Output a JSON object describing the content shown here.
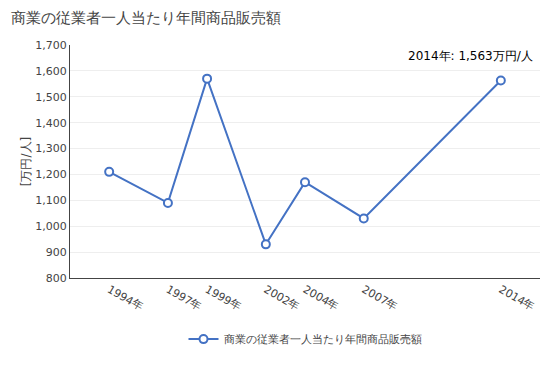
{
  "chart_data": {
    "type": "line",
    "title": "商業の従業者一人当たり年間商品販売額",
    "ylabel": "[万円/人]",
    "annotation": "2014年: 1,563万円/人",
    "x": [
      1994,
      1997,
      1999,
      2002,
      2004,
      2007,
      2014
    ],
    "xlim": [
      1992,
      2016
    ],
    "xticks": [
      {
        "value": 1994,
        "label": "1994年"
      },
      {
        "value": 1997,
        "label": "1997年"
      },
      {
        "value": 1999,
        "label": "1999年"
      },
      {
        "value": 2002,
        "label": "2002年"
      },
      {
        "value": 2004,
        "label": "2004年"
      },
      {
        "value": 2007,
        "label": "2007年"
      },
      {
        "value": 2014,
        "label": "2014年"
      }
    ],
    "series": [
      {
        "name": "商業の従業者一人当たり年間商品販売額",
        "color": "#4472C4",
        "values": [
          1210,
          1090,
          1570,
          930,
          1170,
          1030,
          1563
        ]
      }
    ],
    "ylim": [
      800,
      1700
    ],
    "yticks": [
      800,
      900,
      {
        "value": 1000,
        "label": "1,000"
      },
      {
        "value": 1100,
        "label": "1,100"
      },
      {
        "value": 1200,
        "label": "1,200"
      },
      {
        "value": 1300,
        "label": "1,300"
      },
      {
        "value": 1400,
        "label": "1,400"
      },
      {
        "value": 1500,
        "label": "1,500"
      },
      {
        "value": 1600,
        "label": "1,600"
      },
      {
        "value": 1700,
        "label": "1,700"
      }
    ],
    "grid": true,
    "legend": "bottom",
    "marker": "circle"
  }
}
